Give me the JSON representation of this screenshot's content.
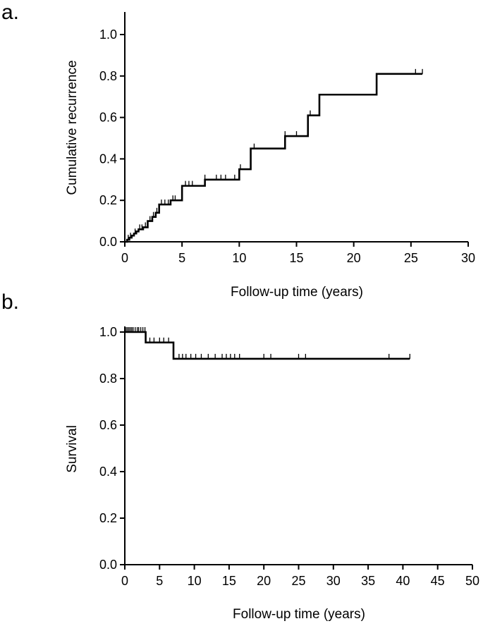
{
  "chart_data": [
    {
      "panel_label": "a.",
      "type": "line",
      "step": true,
      "xlabel": "Follow-up time (years)",
      "ylabel": "Cumulative recurrence",
      "xlim": [
        0,
        30
      ],
      "ylim": [
        0,
        1.0
      ],
      "xticks": [
        "0",
        "5",
        "10",
        "15",
        "20",
        "25",
        "30"
      ],
      "yticks": [
        "0.0",
        "0.2",
        "0.4",
        "0.6",
        "0.8",
        "1.0"
      ],
      "x": [
        0,
        0.2,
        0.4,
        0.6,
        0.8,
        1.0,
        1.2,
        1.6,
        2.0,
        2.4,
        2.7,
        3.0,
        4.0,
        5.0,
        7.0,
        10.0,
        11.0,
        14.0,
        16.0,
        17.0,
        22.0,
        26.0
      ],
      "values": [
        0,
        0.01,
        0.02,
        0.03,
        0.04,
        0.05,
        0.06,
        0.07,
        0.1,
        0.12,
        0.14,
        0.18,
        0.2,
        0.27,
        0.3,
        0.35,
        0.45,
        0.51,
        0.61,
        0.71,
        0.81,
        0.81
      ],
      "censored_x": [
        0.3,
        0.5,
        0.9,
        1.3,
        1.5,
        1.8,
        2.2,
        2.5,
        2.8,
        3.2,
        3.5,
        3.8,
        4.2,
        4.4,
        5.3,
        5.6,
        5.9,
        7.0,
        8.0,
        8.4,
        8.8,
        9.6,
        10.1,
        11.3,
        14.0,
        15.0,
        16.2,
        25.4,
        26.0
      ]
    },
    {
      "panel_label": "b.",
      "type": "line",
      "step": true,
      "xlabel": "Follow-up time (years)",
      "ylabel": "Survival",
      "xlim": [
        0,
        50
      ],
      "ylim": [
        0,
        1.0
      ],
      "xticks": [
        "0",
        "5",
        "10",
        "15",
        "20",
        "25",
        "30",
        "35",
        "40",
        "45",
        "50"
      ],
      "yticks": [
        "0.0",
        "0.2",
        "0.4",
        "0.6",
        "0.8",
        "1.0"
      ],
      "x": [
        0,
        3.0,
        7.0,
        41.0
      ],
      "values": [
        1.0,
        0.955,
        0.885,
        0.885
      ],
      "censored_x": [
        0.2,
        0.4,
        0.6,
        0.8,
        1.0,
        1.2,
        1.5,
        1.8,
        2.0,
        2.3,
        2.6,
        2.9,
        3.6,
        4.2,
        5.0,
        5.6,
        6.3,
        7.8,
        8.3,
        8.8,
        9.5,
        10.2,
        11.0,
        12.0,
        13.0,
        14.0,
        14.6,
        15.2,
        15.8,
        16.5,
        20.0,
        21.0,
        25.0,
        26.0,
        38.0,
        41.0
      ]
    }
  ]
}
